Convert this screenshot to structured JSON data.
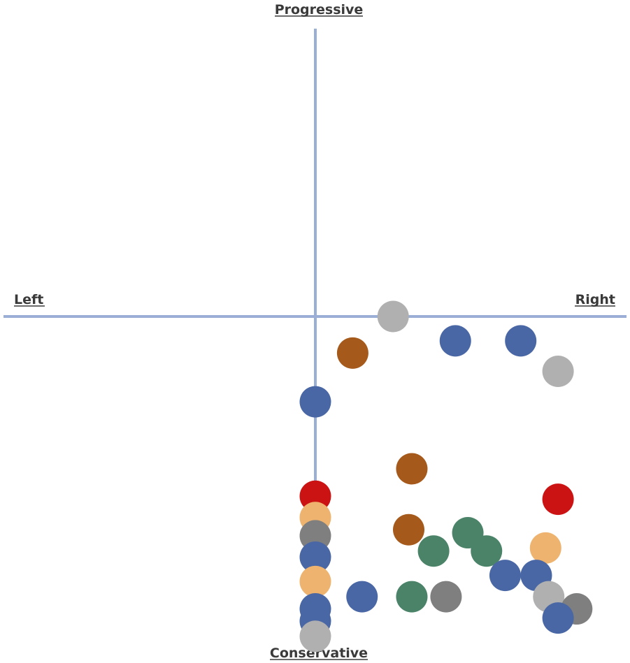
{
  "chart_data": {
    "type": "scatter",
    "title": "",
    "xlabel": "",
    "ylabel": "",
    "axis_labels": {
      "top": "Progressive",
      "bottom": "Conservative",
      "left": "Left",
      "right": "Right"
    },
    "xlim": [
      -10,
      10
    ],
    "ylim": [
      -10,
      10
    ],
    "grid": false,
    "legend": "none",
    "axis_color": "#9aaed6",
    "points": [
      {
        "x": 2.5,
        "y": 0.0,
        "color": "#b0b0b0"
      },
      {
        "x": 1.2,
        "y": -1.2,
        "color": "#a5591a"
      },
      {
        "x": 4.5,
        "y": -0.8,
        "color": "#4a67a5"
      },
      {
        "x": 6.6,
        "y": -0.8,
        "color": "#4a67a5"
      },
      {
        "x": 7.8,
        "y": -1.8,
        "color": "#b0b0b0"
      },
      {
        "x": 0.0,
        "y": -2.8,
        "color": "#4a67a5"
      },
      {
        "x": 3.1,
        "y": -5.0,
        "color": "#a5591a"
      },
      {
        "x": 0.0,
        "y": -5.9,
        "color": "#cc1313"
      },
      {
        "x": 7.8,
        "y": -6.0,
        "color": "#cc1313"
      },
      {
        "x": 0.0,
        "y": -6.6,
        "color": "#eeb36e"
      },
      {
        "x": 0.0,
        "y": -7.2,
        "color": "#7f7f7f"
      },
      {
        "x": 3.0,
        "y": -7.0,
        "color": "#a5591a"
      },
      {
        "x": 4.9,
        "y": -7.1,
        "color": "#4a8368"
      },
      {
        "x": 3.8,
        "y": -7.7,
        "color": "#4a8368"
      },
      {
        "x": 5.5,
        "y": -7.7,
        "color": "#4a8368"
      },
      {
        "x": 7.4,
        "y": -7.6,
        "color": "#eeb36e"
      },
      {
        "x": 0.0,
        "y": -7.9,
        "color": "#4a67a5"
      },
      {
        "x": 6.1,
        "y": -8.5,
        "color": "#4a67a5"
      },
      {
        "x": 7.1,
        "y": -8.5,
        "color": "#4a67a5"
      },
      {
        "x": 0.0,
        "y": -8.7,
        "color": "#eeb36e"
      },
      {
        "x": 1.5,
        "y": -9.2,
        "color": "#4a67a5"
      },
      {
        "x": 3.1,
        "y": -9.2,
        "color": "#4a8368"
      },
      {
        "x": 4.2,
        "y": -9.2,
        "color": "#7f7f7f"
      },
      {
        "x": 7.5,
        "y": -9.2,
        "color": "#b0b0b0"
      },
      {
        "x": 0.0,
        "y": -9.6,
        "color": "#4a67a5"
      },
      {
        "x": 8.4,
        "y": -9.6,
        "color": "#7f7f7f"
      },
      {
        "x": 7.8,
        "y": -9.9,
        "color": "#4a67a5"
      },
      {
        "x": 0.0,
        "y": -10.0,
        "color": "#4a67a5"
      },
      {
        "x": 0.0,
        "y": -10.5,
        "color": "#b0b0b0"
      }
    ]
  }
}
